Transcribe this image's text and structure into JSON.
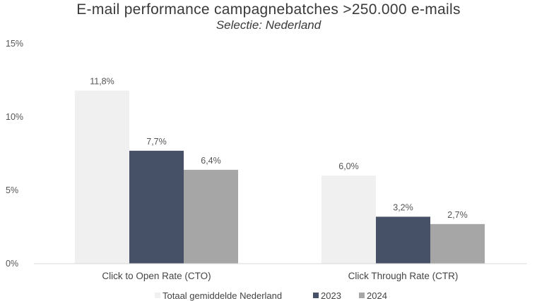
{
  "chart_data": {
    "type": "bar",
    "title": "E-mail performance campagnebatches >250.000 e-mails",
    "subtitle": "Selectie: Nederland",
    "xlabel": "",
    "ylabel": "",
    "categories": [
      "Click to Open Rate (CTO)",
      "Click Through Rate (CTR)"
    ],
    "series": [
      {
        "name": "Totaal gemiddelde Nederland",
        "values": [
          11.8,
          6.0
        ],
        "labels": [
          "11,8%",
          "6,0%"
        ],
        "color": "#f0f0f0"
      },
      {
        "name": "2023",
        "values": [
          7.7,
          3.2
        ],
        "labels": [
          "7,7%",
          "3,2%"
        ],
        "color": "#465167"
      },
      {
        "name": "2024",
        "values": [
          6.4,
          2.7
        ],
        "labels": [
          "6,4%",
          "2,7%"
        ],
        "color": "#a6a6a6"
      }
    ],
    "ylim": [
      0,
      15
    ],
    "yticks": [
      0,
      5,
      10,
      15
    ],
    "ytick_labels": [
      "0%",
      "5%",
      "10%",
      "15%"
    ],
    "grid": false,
    "legend_position": "bottom-center"
  }
}
